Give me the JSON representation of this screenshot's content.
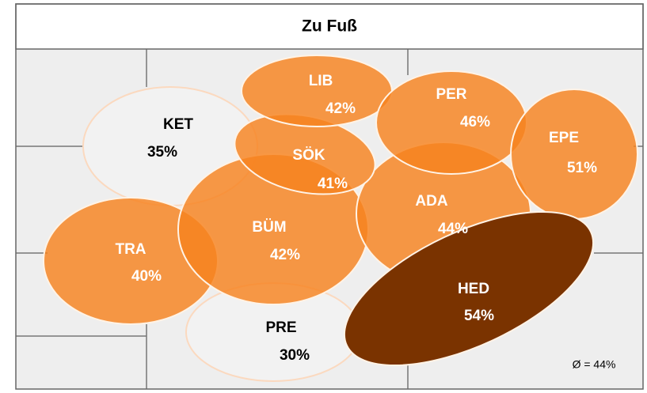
{
  "title": "Zu Fuß",
  "regions": [
    {
      "name": "KET",
      "label": "35%"
    },
    {
      "name": "PRE",
      "label": "30%"
    },
    {
      "name": "LIB",
      "label": "42%"
    },
    {
      "name": "PER",
      "label": "46%"
    },
    {
      "name": "EPE",
      "label": "51%"
    },
    {
      "name": "SÖK",
      "label": "41%"
    },
    {
      "name": "ADA",
      "label": "44%"
    },
    {
      "name": "BÜM",
      "label": "42%"
    },
    {
      "name": "TRA",
      "label": "40%"
    },
    {
      "name": "HED",
      "label": "54%"
    }
  ],
  "average": "Ø = 44%"
}
